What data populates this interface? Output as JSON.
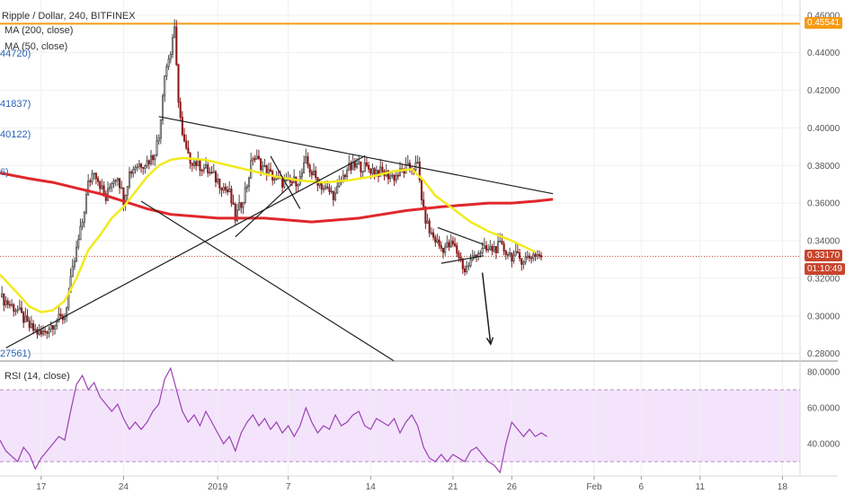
{
  "header": {
    "title": "Ripple / Dollar, 240, BITFINEX",
    "ma200_label": "MA (200, close)",
    "ma50_label": "MA (50, close)",
    "left_values": [
      "44720)",
      "41837)",
      "40122)",
      "6)",
      "27561)"
    ]
  },
  "rsi_label": "RSI (14, close)",
  "badges": {
    "resistance": "0.45541",
    "price": "0.33170",
    "countdown": "01:10:49"
  },
  "colors": {
    "up": "#4a4a4a",
    "down": "#8b1a1a",
    "ma50": "#f2ea1c",
    "ma200": "#e0272a",
    "resistance": "#f79a13",
    "rsi": "#9c3fb3",
    "rsi_band": "#f3e4fb",
    "price_line": "#c8452c"
  },
  "chart_data": {
    "type": "candlestick",
    "y_ticks": [
      0.28,
      0.3,
      0.32,
      0.34,
      0.36,
      0.38,
      0.4,
      0.42,
      0.44,
      0.46
    ],
    "y_tick_labels": [
      "0.28000",
      "0.30000",
      "0.32000",
      "0.34000",
      "0.36000",
      "0.38000",
      "0.40000",
      "0.42000",
      "0.44000",
      "0.46000"
    ],
    "ylim": [
      0.276,
      0.468
    ],
    "x_tick_labels": [
      "17",
      "24",
      "2019",
      "7",
      "14",
      "21",
      "26",
      "Feb",
      "6",
      "11",
      "18"
    ],
    "x_tick_days": [
      0,
      7,
      15,
      21,
      28,
      35,
      40,
      47,
      51,
      56,
      63
    ],
    "x_range_days": [
      -3.5,
      64.5
    ],
    "resistance_level": 0.45541,
    "last_price": 0.3317,
    "close_anchors": [
      [
        -3.5,
        0.31
      ],
      [
        -2,
        0.303
      ],
      [
        -1,
        0.294
      ],
      [
        0,
        0.29
      ],
      [
        1,
        0.296
      ],
      [
        2,
        0.3
      ],
      [
        2.5,
        0.318
      ],
      [
        3,
        0.335
      ],
      [
        3.5,
        0.35
      ],
      [
        4,
        0.37
      ],
      [
        4.5,
        0.378
      ],
      [
        5,
        0.37
      ],
      [
        5.5,
        0.362
      ],
      [
        6,
        0.372
      ],
      [
        6.5,
        0.375
      ],
      [
        7,
        0.362
      ],
      [
        7.5,
        0.376
      ],
      [
        8,
        0.38
      ],
      [
        9,
        0.382
      ],
      [
        9.5,
        0.385
      ],
      [
        10,
        0.395
      ],
      [
        10.5,
        0.43
      ],
      [
        11,
        0.44
      ],
      [
        11.3,
        0.455
      ],
      [
        11.6,
        0.42
      ],
      [
        12,
        0.395
      ],
      [
        12.5,
        0.384
      ],
      [
        13,
        0.382
      ],
      [
        14,
        0.378
      ],
      [
        15,
        0.372
      ],
      [
        16,
        0.365
      ],
      [
        16.5,
        0.352
      ],
      [
        17,
        0.36
      ],
      [
        17.5,
        0.37
      ],
      [
        18,
        0.385
      ],
      [
        18.5,
        0.382
      ],
      [
        19,
        0.378
      ],
      [
        20,
        0.372
      ],
      [
        21,
        0.37
      ],
      [
        22,
        0.373
      ],
      [
        22.5,
        0.382
      ],
      [
        23,
        0.376
      ],
      [
        24,
        0.368
      ],
      [
        25,
        0.364
      ],
      [
        25.5,
        0.372
      ],
      [
        26,
        0.378
      ],
      [
        27,
        0.38
      ],
      [
        28,
        0.378
      ],
      [
        29,
        0.376
      ],
      [
        30,
        0.374
      ],
      [
        31,
        0.378
      ],
      [
        32,
        0.38
      ],
      [
        32.5,
        0.355
      ],
      [
        33,
        0.345
      ],
      [
        34,
        0.336
      ],
      [
        35,
        0.338
      ],
      [
        35.5,
        0.332
      ],
      [
        36,
        0.324
      ],
      [
        37,
        0.334
      ],
      [
        38,
        0.335
      ],
      [
        39,
        0.337
      ],
      [
        40,
        0.332
      ],
      [
        41,
        0.33
      ],
      [
        42,
        0.333
      ],
      [
        42.5,
        0.3317
      ]
    ],
    "ma50_anchors": [
      [
        -3.5,
        0.322
      ],
      [
        -2,
        0.312
      ],
      [
        -1,
        0.305
      ],
      [
        0,
        0.302
      ],
      [
        1,
        0.303
      ],
      [
        2,
        0.308
      ],
      [
        3,
        0.32
      ],
      [
        4,
        0.335
      ],
      [
        5,
        0.343
      ],
      [
        6,
        0.352
      ],
      [
        7,
        0.358
      ],
      [
        8,
        0.366
      ],
      [
        9,
        0.374
      ],
      [
        10,
        0.38
      ],
      [
        11,
        0.383
      ],
      [
        12,
        0.384
      ],
      [
        14,
        0.383
      ],
      [
        16,
        0.38
      ],
      [
        18,
        0.377
      ],
      [
        20,
        0.374
      ],
      [
        22,
        0.372
      ],
      [
        24,
        0.371
      ],
      [
        26,
        0.372
      ],
      [
        28,
        0.374
      ],
      [
        30,
        0.377
      ],
      [
        31.5,
        0.378
      ],
      [
        32.5,
        0.372
      ],
      [
        33.5,
        0.364
      ],
      [
        35,
        0.357
      ],
      [
        36.5,
        0.35
      ],
      [
        38,
        0.345
      ],
      [
        40,
        0.34
      ],
      [
        42,
        0.334
      ]
    ],
    "ma200_anchors": [
      [
        -3.5,
        0.376
      ],
      [
        -1,
        0.373
      ],
      [
        1,
        0.371
      ],
      [
        3,
        0.368
      ],
      [
        5,
        0.365
      ],
      [
        7,
        0.361
      ],
      [
        9,
        0.357
      ],
      [
        11,
        0.354
      ],
      [
        13,
        0.353
      ],
      [
        15,
        0.352
      ],
      [
        17,
        0.352
      ],
      [
        19,
        0.352
      ],
      [
        21,
        0.351
      ],
      [
        23,
        0.35
      ],
      [
        25,
        0.351
      ],
      [
        27,
        0.352
      ],
      [
        29,
        0.354
      ],
      [
        31,
        0.356
      ],
      [
        32.5,
        0.357
      ],
      [
        34,
        0.358
      ],
      [
        36,
        0.359
      ],
      [
        38,
        0.36
      ],
      [
        40,
        0.36
      ],
      [
        42,
        0.361
      ],
      [
        43.5,
        0.362
      ]
    ],
    "trendlines": [
      [
        [
          10.0,
          0.406
        ],
        [
          43.5,
          0.365
        ]
      ],
      [
        [
          8.5,
          0.361
        ],
        [
          30.0,
          0.276
        ]
      ],
      [
        [
          -3.0,
          0.283
        ],
        [
          27.5,
          0.385
        ]
      ],
      [
        [
          16.5,
          0.342
        ],
        [
          21.3,
          0.37
        ]
      ],
      [
        [
          19.5,
          0.385
        ],
        [
          22.0,
          0.357
        ]
      ],
      [
        [
          33.7,
          0.347
        ],
        [
          37.6,
          0.338
        ]
      ],
      [
        [
          34.0,
          0.328
        ],
        [
          37.6,
          0.332
        ]
      ]
    ],
    "arrow": [
      [
        37.5,
        0.323
      ],
      [
        38.2,
        0.285
      ]
    ],
    "rsi": {
      "ylim": [
        22,
        85
      ],
      "upper": 70,
      "lower": 30,
      "y_ticks": [
        40,
        60,
        80
      ],
      "y_tick_labels": [
        "40.0000",
        "60.0000",
        "80.0000"
      ],
      "anchors": [
        [
          -3.5,
          42
        ],
        [
          -3,
          36
        ],
        [
          -2,
          30
        ],
        [
          -1.5,
          38
        ],
        [
          -1,
          34
        ],
        [
          -0.5,
          26
        ],
        [
          0,
          32
        ],
        [
          0.5,
          36
        ],
        [
          1,
          40
        ],
        [
          1.5,
          44
        ],
        [
          2,
          42
        ],
        [
          2.5,
          58
        ],
        [
          3,
          73
        ],
        [
          3.5,
          78
        ],
        [
          4,
          70
        ],
        [
          4.5,
          74
        ],
        [
          5,
          66
        ],
        [
          5.5,
          62
        ],
        [
          6,
          58
        ],
        [
          6.5,
          62
        ],
        [
          7,
          54
        ],
        [
          7.5,
          48
        ],
        [
          8,
          52
        ],
        [
          8.5,
          48
        ],
        [
          9,
          52
        ],
        [
          9.5,
          58
        ],
        [
          10,
          62
        ],
        [
          10.5,
          76
        ],
        [
          11,
          82
        ],
        [
          11.5,
          70
        ],
        [
          12,
          58
        ],
        [
          12.5,
          52
        ],
        [
          13,
          56
        ],
        [
          13.5,
          50
        ],
        [
          14,
          58
        ],
        [
          14.5,
          52
        ],
        [
          15,
          46
        ],
        [
          15.5,
          40
        ],
        [
          16,
          44
        ],
        [
          16.5,
          36
        ],
        [
          17,
          46
        ],
        [
          17.5,
          52
        ],
        [
          18,
          56
        ],
        [
          18.5,
          50
        ],
        [
          19,
          54
        ],
        [
          19.5,
          48
        ],
        [
          20,
          52
        ],
        [
          20.5,
          46
        ],
        [
          21,
          50
        ],
        [
          21.5,
          44
        ],
        [
          22,
          50
        ],
        [
          22.5,
          60
        ],
        [
          23,
          52
        ],
        [
          23.5,
          46
        ],
        [
          24,
          50
        ],
        [
          24.5,
          48
        ],
        [
          25,
          56
        ],
        [
          25.5,
          50
        ],
        [
          26,
          52
        ],
        [
          26.5,
          56
        ],
        [
          27,
          58
        ],
        [
          27.5,
          50
        ],
        [
          28,
          48
        ],
        [
          28.5,
          54
        ],
        [
          29,
          52
        ],
        [
          29.5,
          50
        ],
        [
          30,
          54
        ],
        [
          30.5,
          46
        ],
        [
          31,
          52
        ],
        [
          31.5,
          56
        ],
        [
          32,
          50
        ],
        [
          32.5,
          38
        ],
        [
          33,
          32
        ],
        [
          33.5,
          30
        ],
        [
          34,
          34
        ],
        [
          34.5,
          30
        ],
        [
          35,
          34
        ],
        [
          35.5,
          32
        ],
        [
          36,
          30
        ],
        [
          36.5,
          36
        ],
        [
          37,
          38
        ],
        [
          37.5,
          34
        ],
        [
          38,
          30
        ],
        [
          38.5,
          28
        ],
        [
          39,
          24
        ],
        [
          39.5,
          40
        ],
        [
          40,
          52
        ],
        [
          40.5,
          48
        ],
        [
          41,
          44
        ],
        [
          41.5,
          48
        ],
        [
          42,
          44
        ],
        [
          42.5,
          46
        ],
        [
          43,
          44
        ]
      ]
    }
  }
}
